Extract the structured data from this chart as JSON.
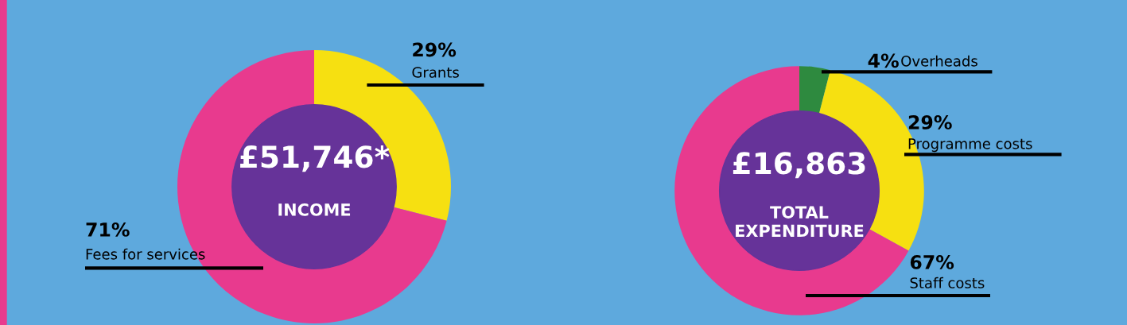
{
  "chart_data": [
    {
      "type": "donut",
      "title": "INCOME",
      "annotations": [
        "£51,746*"
      ],
      "categories": [
        "Grants",
        "Fees for services"
      ],
      "values": [
        29,
        71
      ],
      "colors": [
        "#f6e011",
        "#e83a8e"
      ],
      "value_labels": [
        "29%",
        "71%"
      ]
    },
    {
      "type": "donut",
      "title": "TOTAL\nEXPENDITURE",
      "annotations": [
        "£16,863"
      ],
      "categories": [
        "Overheads",
        "Programme costs",
        "Staff costs"
      ],
      "values": [
        4,
        29,
        67
      ],
      "colors": [
        "#2e8a3f",
        "#f6e011",
        "#e83a8e"
      ],
      "value_labels": [
        "4%",
        "29%",
        "67%"
      ]
    }
  ]
}
